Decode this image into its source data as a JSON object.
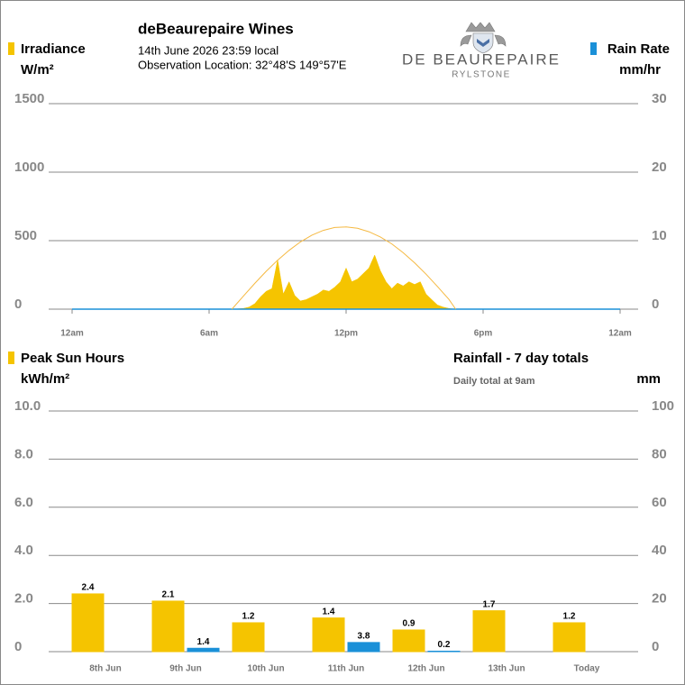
{
  "header": {
    "title": "deBeaurepaire Wines",
    "timestamp": "14th June 2026  23:59 local",
    "location": "Observation Location: 32°48'S 149°57'E"
  },
  "logo": {
    "name": "DE BEAUREPAIRE",
    "place": "RYLSTONE"
  },
  "chart_data": [
    {
      "type": "area",
      "xlim": [
        0,
        24
      ],
      "xticks": [
        {
          "value": 0,
          "label": "12am"
        },
        {
          "value": 6,
          "label": "6am"
        },
        {
          "value": 12,
          "label": "12pm"
        },
        {
          "value": 18,
          "label": "6pm"
        },
        {
          "value": 24,
          "label": "12am"
        }
      ],
      "y_label": "W/m²",
      "y2_label": "mm/hr",
      "ylim": [
        0,
        1500
      ],
      "yticks": [
        0,
        500,
        1000,
        1500
      ],
      "y2lim": [
        0,
        30
      ],
      "y2ticks": [
        0,
        10,
        20,
        30
      ],
      "grid": true,
      "series": [
        {
          "name": "Irradiance",
          "color": "#f5c400",
          "fill": true,
          "x": [
            7,
            7.25,
            7.5,
            7.75,
            8,
            8.25,
            8.5,
            8.75,
            9,
            9.25,
            9.5,
            9.75,
            10,
            10.25,
            10.5,
            10.75,
            11,
            11.25,
            11.5,
            11.75,
            12,
            12.25,
            12.5,
            12.75,
            13,
            13.25,
            13.5,
            13.75,
            14,
            14.25,
            14.5,
            14.75,
            15,
            15.25,
            15.5,
            15.75,
            16,
            16.25,
            16.5,
            16.75
          ],
          "values": [
            0,
            2,
            5,
            15,
            40,
            90,
            130,
            150,
            360,
            110,
            200,
            100,
            60,
            70,
            90,
            110,
            140,
            130,
            160,
            200,
            300,
            200,
            220,
            260,
            300,
            395,
            280,
            200,
            150,
            190,
            170,
            200,
            180,
            200,
            110,
            70,
            30,
            15,
            5,
            0
          ]
        },
        {
          "name": "Rain Rate",
          "color": "#1a90d8",
          "axis": "y2",
          "x": [
            0,
            24
          ],
          "values": [
            0,
            0
          ]
        }
      ],
      "reference_curve": {
        "color": "#f5b942",
        "x": [
          7,
          7.5,
          8,
          8.5,
          9,
          9.5,
          10,
          10.5,
          11,
          11.5,
          12,
          12.5,
          13,
          13.5,
          14,
          14.5,
          15,
          15.5,
          16,
          16.5,
          16.8
        ],
        "values": [
          0,
          95,
          188,
          276,
          357,
          429,
          491,
          540,
          575,
          596,
          600,
          590,
          565,
          527,
          476,
          412,
          338,
          255,
          166,
          72,
          0
        ]
      }
    },
    {
      "type": "bar",
      "title": "Rainfall - 7 day totals",
      "subtitle": "Daily total at 9am",
      "y_label": "kWh/m²",
      "y2_label": "mm",
      "categories": [
        "8th Jun",
        "9th Jun",
        "10th Jun",
        "11th Jun",
        "12th Jun",
        "13th Jun",
        "Today"
      ],
      "ylim": [
        0,
        10
      ],
      "yticks": [
        0,
        {
          "value": 2,
          "label": "2.0"
        },
        {
          "value": 4,
          "label": "4.0"
        },
        {
          "value": 6,
          "label": "6.0"
        },
        {
          "value": 8,
          "label": "8.0"
        },
        {
          "value": 10,
          "label": "10.0"
        }
      ],
      "y2lim": [
        0,
        100
      ],
      "y2ticks": [
        0,
        20,
        40,
        60,
        80,
        100
      ],
      "grid": true,
      "series": [
        {
          "name": "Peak Sun Hours",
          "color": "#f5c400",
          "values": [
            2.4,
            2.1,
            1.2,
            1.4,
            0.9,
            1.7,
            1.2
          ]
        },
        {
          "color": "#1a90d8",
          "axis": "y2",
          "values": [
            0,
            1.4,
            0,
            3.8,
            0.2,
            0,
            0
          ],
          "value_labels": [
            null,
            "1.4",
            null,
            "3.8",
            "0.2",
            null,
            null
          ]
        }
      ]
    }
  ]
}
